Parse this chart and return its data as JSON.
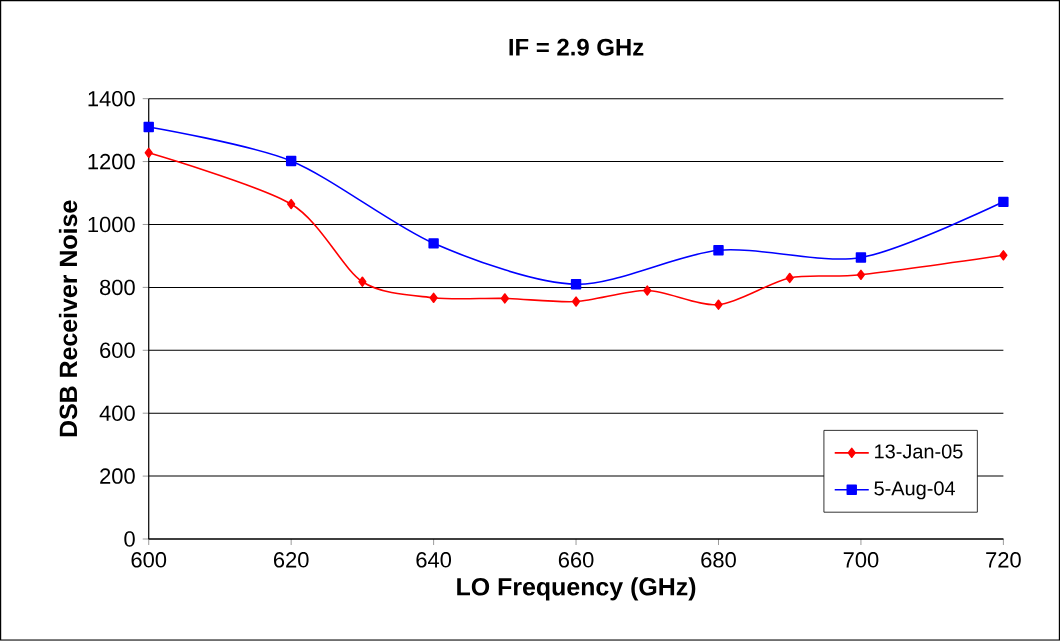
{
  "chart_data": {
    "type": "line",
    "title": "IF = 2.9 GHz",
    "xlabel": "LO Frequency (GHz)",
    "ylabel": "DSB Receiver Noise",
    "xlim": [
      600,
      720
    ],
    "xticks": [
      600,
      620,
      640,
      660,
      680,
      700,
      720
    ],
    "ylim": [
      0,
      1400
    ],
    "yticks": [
      0,
      200,
      400,
      600,
      800,
      1000,
      1200,
      1400
    ],
    "grid": "y",
    "legend": "bottom right",
    "line_style": "solid",
    "series": [
      {
        "name": "13-Jan-05",
        "color": "#ff0000",
        "marker": "diamond",
        "x": [
          600,
          620,
          630,
          640,
          650,
          660,
          670,
          680,
          690,
          700,
          720
        ],
        "values": [
          1228,
          1065,
          818,
          767,
          765,
          755,
          790,
          745,
          830,
          840,
          902
        ]
      },
      {
        "name": "5-Aug-04",
        "color": "#0000ff",
        "marker": "square",
        "x": [
          600,
          620,
          640,
          660,
          680,
          700,
          720
        ],
        "values": [
          1310,
          1202,
          940,
          810,
          918,
          895,
          1072
        ]
      }
    ]
  }
}
